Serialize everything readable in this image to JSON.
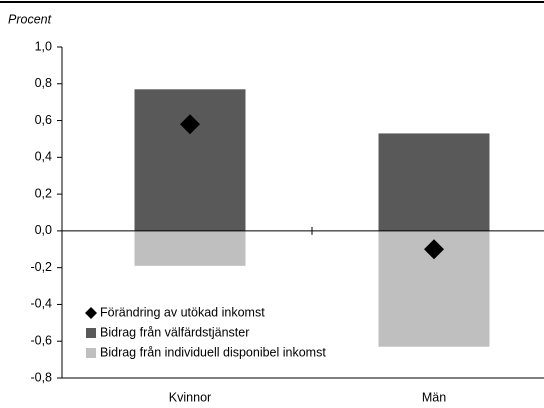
{
  "chart_data": {
    "type": "bar",
    "stacked": true,
    "y_axis_label": "Procent",
    "categories": [
      "Kvinnor",
      "Män"
    ],
    "series": [
      {
        "name": "Förändring av utökad inkomst",
        "kind": "diamond",
        "color": "#000000",
        "values": [
          0.58,
          -0.1
        ]
      },
      {
        "name": "Bidrag från välfärdstjänster",
        "kind": "bar",
        "color": "#595959",
        "values": [
          0.77,
          0.53
        ]
      },
      {
        "name": "Bidrag från individuell disponibel inkomst",
        "kind": "bar",
        "color": "#bfbfbf",
        "values": [
          -0.19,
          -0.63
        ]
      }
    ],
    "ylim": [
      -0.8,
      1.0
    ],
    "yticks": [
      {
        "value": -0.8,
        "label": "-0,8"
      },
      {
        "value": -0.6,
        "label": "-0,6"
      },
      {
        "value": -0.4,
        "label": "-0,4"
      },
      {
        "value": -0.2,
        "label": "-0,2"
      },
      {
        "value": 0,
        "label": "0,0"
      },
      {
        "value": 0.2,
        "label": "0,2"
      },
      {
        "value": 0.4,
        "label": "0,4"
      },
      {
        "value": 0.6,
        "label": "0,6"
      },
      {
        "value": 0.8,
        "label": "0,8"
      },
      {
        "value": 1.0,
        "label": "1,0"
      }
    ],
    "legend": "lower left"
  }
}
